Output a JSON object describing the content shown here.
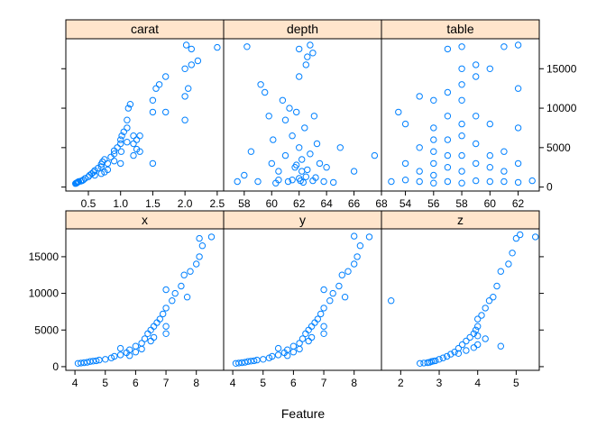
{
  "figure": {
    "xlabel": "Feature"
  },
  "colors": {
    "points": "#0080ff",
    "strip": "#ffe5cc",
    "frame": "#000000"
  },
  "chart_data": {
    "type": "scatter",
    "layout": "lattice 3x2 facets, shared y-axis, free x-axes",
    "y_range": [
      -500,
      18800
    ],
    "y_ticks": [
      0,
      5000,
      10000,
      15000
    ],
    "grid": false,
    "panels": [
      {
        "title": "carat",
        "xlim": [
          0.15,
          2.6
        ],
        "x_ticks": [
          0.5,
          1.0,
          1.5,
          2.0,
          2.5
        ],
        "x_tick_labels": [
          "0.5",
          "1.0",
          "1.5",
          "2.0",
          "2.5"
        ],
        "points": [
          [
            0.3,
            450
          ],
          [
            0.31,
            500
          ],
          [
            0.32,
            520
          ],
          [
            0.33,
            600
          ],
          [
            0.34,
            650
          ],
          [
            0.35,
            700
          ],
          [
            0.38,
            750
          ],
          [
            0.4,
            800
          ],
          [
            0.42,
            900
          ],
          [
            0.45,
            1100
          ],
          [
            0.5,
            1300
          ],
          [
            0.52,
            1500
          ],
          [
            0.55,
            1700
          ],
          [
            0.58,
            1900
          ],
          [
            0.6,
            2100
          ],
          [
            0.65,
            2400
          ],
          [
            0.7,
            2600
          ],
          [
            0.7,
            2900
          ],
          [
            0.72,
            3200
          ],
          [
            0.75,
            3500
          ],
          [
            0.8,
            3000
          ],
          [
            0.85,
            3800
          ],
          [
            0.9,
            4200
          ],
          [
            0.9,
            4600
          ],
          [
            0.95,
            5000
          ],
          [
            1.0,
            5500
          ],
          [
            1.0,
            6000
          ],
          [
            1.02,
            6500
          ],
          [
            1.05,
            7000
          ],
          [
            1.1,
            7500
          ],
          [
            1.1,
            8500
          ],
          [
            1.12,
            10000
          ],
          [
            1.15,
            10500
          ],
          [
            1.2,
            6500
          ],
          [
            1.2,
            5500
          ],
          [
            1.25,
            6000
          ],
          [
            1.3,
            4500
          ],
          [
            1.5,
            9500
          ],
          [
            1.5,
            11000
          ],
          [
            1.55,
            12500
          ],
          [
            1.6,
            13000
          ],
          [
            1.7,
            14000
          ],
          [
            1.7,
            9500
          ],
          [
            2.0,
            8500
          ],
          [
            2.0,
            11500
          ],
          [
            2.0,
            15000
          ],
          [
            2.02,
            18000
          ],
          [
            2.05,
            12500
          ],
          [
            2.1,
            15500
          ],
          [
            2.1,
            17500
          ],
          [
            2.2,
            16000
          ],
          [
            2.5,
            17700
          ],
          [
            0.7,
            1700
          ],
          [
            0.75,
            1900
          ],
          [
            1.0,
            3000
          ],
          [
            1.2,
            4000
          ],
          [
            1.5,
            3000
          ],
          [
            0.9,
            3300
          ],
          [
            1.01,
            4500
          ],
          [
            1.3,
            6500
          ],
          [
            0.8,
            2200
          ],
          [
            0.6,
            1500
          ],
          [
            1.1,
            5700
          ],
          [
            1.25,
            4800
          ]
        ]
      },
      {
        "title": "depth",
        "xlim": [
          56.5,
          68.0
        ],
        "x_ticks": [
          58,
          60,
          62,
          64,
          66,
          68
        ],
        "x_tick_labels": [
          "58",
          "60",
          "62",
          "64",
          "66",
          "68"
        ],
        "points": [
          [
            57.5,
            700
          ],
          [
            58.0,
            1500
          ],
          [
            58.2,
            17800
          ],
          [
            58.5,
            4500
          ],
          [
            59.0,
            700
          ],
          [
            59.2,
            13000
          ],
          [
            59.5,
            12000
          ],
          [
            59.8,
            9000
          ],
          [
            60.0,
            3000
          ],
          [
            60.1,
            6000
          ],
          [
            60.3,
            500
          ],
          [
            60.5,
            2000
          ],
          [
            60.8,
            11000
          ],
          [
            61.0,
            4000
          ],
          [
            61.0,
            8500
          ],
          [
            61.2,
            700
          ],
          [
            61.3,
            10000
          ],
          [
            61.5,
            6500
          ],
          [
            61.7,
            2500
          ],
          [
            61.8,
            9500
          ],
          [
            62.0,
            17500
          ],
          [
            62.0,
            14000
          ],
          [
            62.0,
            5000
          ],
          [
            62.1,
            800
          ],
          [
            62.2,
            3500
          ],
          [
            62.3,
            600
          ],
          [
            62.4,
            7500
          ],
          [
            62.5,
            15500
          ],
          [
            62.6,
            16500
          ],
          [
            62.6,
            2200
          ],
          [
            62.8,
            18000
          ],
          [
            62.8,
            4200
          ],
          [
            63.0,
            17000
          ],
          [
            63.1,
            9000
          ],
          [
            63.2,
            1200
          ],
          [
            63.3,
            5500
          ],
          [
            63.5,
            3000
          ],
          [
            63.8,
            700
          ],
          [
            64.0,
            2500
          ],
          [
            64.5,
            600
          ],
          [
            65.0,
            5000
          ],
          [
            66.0,
            2000
          ],
          [
            67.5,
            4000
          ],
          [
            61.5,
            900
          ],
          [
            62.0,
            1100
          ],
          [
            62.5,
            1300
          ],
          [
            61.8,
            2800
          ],
          [
            62.2,
            2000
          ],
          [
            60.5,
            900
          ],
          [
            63.0,
            800
          ]
        ]
      },
      {
        "title": "table",
        "xlim": [
          52.3,
          63.5
        ],
        "x_ticks": [
          54,
          56,
          58,
          60,
          62
        ],
        "x_tick_labels": [
          "54",
          "56",
          "58",
          "60",
          "62"
        ],
        "points": [
          [
            53,
            700
          ],
          [
            53.5,
            9500
          ],
          [
            54,
            900
          ],
          [
            54,
            3000
          ],
          [
            54,
            8000
          ],
          [
            55,
            700
          ],
          [
            55,
            2000
          ],
          [
            55,
            5000
          ],
          [
            55,
            11500
          ],
          [
            56,
            500
          ],
          [
            56,
            1500
          ],
          [
            56,
            3000
          ],
          [
            56,
            4500
          ],
          [
            56,
            6000
          ],
          [
            56,
            7500
          ],
          [
            56,
            11000
          ],
          [
            57,
            700
          ],
          [
            57,
            2500
          ],
          [
            57,
            4000
          ],
          [
            57,
            6000
          ],
          [
            57,
            9000
          ],
          [
            57,
            12000
          ],
          [
            57,
            17500
          ],
          [
            58,
            500
          ],
          [
            58,
            2000
          ],
          [
            58,
            4000
          ],
          [
            58,
            6500
          ],
          [
            58,
            8000
          ],
          [
            58,
            11000
          ],
          [
            58,
            13000
          ],
          [
            58,
            15000
          ],
          [
            58,
            17800
          ],
          [
            59,
            800
          ],
          [
            59,
            3000
          ],
          [
            59,
            5500
          ],
          [
            59,
            9000
          ],
          [
            59,
            14000
          ],
          [
            59,
            15500
          ],
          [
            60,
            700
          ],
          [
            60,
            2500
          ],
          [
            60,
            4000
          ],
          [
            60,
            8000
          ],
          [
            60,
            15000
          ],
          [
            61,
            700
          ],
          [
            61,
            2000
          ],
          [
            61,
            4500
          ],
          [
            61,
            17800
          ],
          [
            62,
            600
          ],
          [
            62,
            3000
          ],
          [
            62,
            7500
          ],
          [
            62,
            12500
          ],
          [
            62,
            18000
          ],
          [
            63,
            800
          ]
        ]
      },
      {
        "title": "x",
        "xlim": [
          3.7,
          8.9
        ],
        "x_ticks": [
          4,
          5,
          6,
          7,
          8
        ],
        "x_tick_labels": [
          "4",
          "5",
          "6",
          "7",
          "8"
        ],
        "points": [
          [
            4.1,
            450
          ],
          [
            4.2,
            500
          ],
          [
            4.3,
            550
          ],
          [
            4.4,
            600
          ],
          [
            4.5,
            700
          ],
          [
            4.6,
            750
          ],
          [
            4.7,
            800
          ],
          [
            4.8,
            900
          ],
          [
            5.0,
            1000
          ],
          [
            5.2,
            1200
          ],
          [
            5.3,
            1400
          ],
          [
            5.5,
            1600
          ],
          [
            5.7,
            1900
          ],
          [
            5.8,
            2300
          ],
          [
            6.0,
            2800
          ],
          [
            6.2,
            3200
          ],
          [
            6.3,
            3800
          ],
          [
            6.4,
            4500
          ],
          [
            6.5,
            5000
          ],
          [
            6.6,
            5500
          ],
          [
            6.7,
            6000
          ],
          [
            6.8,
            6500
          ],
          [
            6.9,
            7200
          ],
          [
            7.0,
            8000
          ],
          [
            7.0,
            10500
          ],
          [
            7.2,
            9000
          ],
          [
            7.3,
            10000
          ],
          [
            7.5,
            11000
          ],
          [
            7.6,
            12500
          ],
          [
            7.7,
            9500
          ],
          [
            7.8,
            13000
          ],
          [
            8.0,
            14000
          ],
          [
            8.1,
            15000
          ],
          [
            8.1,
            17500
          ],
          [
            8.2,
            16500
          ],
          [
            8.5,
            17700
          ],
          [
            5.5,
            2500
          ],
          [
            6.0,
            2000
          ],
          [
            6.5,
            3500
          ],
          [
            7.0,
            5500
          ],
          [
            6.2,
            2400
          ],
          [
            5.8,
            1500
          ],
          [
            6.6,
            4000
          ],
          [
            7.0,
            4500
          ]
        ]
      },
      {
        "title": "y",
        "xlim": [
          3.7,
          8.9
        ],
        "x_ticks": [
          4,
          5,
          6,
          7,
          8
        ],
        "x_tick_labels": [
          "4",
          "5",
          "6",
          "7",
          "8"
        ],
        "points": [
          [
            4.1,
            450
          ],
          [
            4.2,
            500
          ],
          [
            4.3,
            550
          ],
          [
            4.4,
            600
          ],
          [
            4.5,
            700
          ],
          [
            4.6,
            750
          ],
          [
            4.7,
            800
          ],
          [
            4.8,
            900
          ],
          [
            5.0,
            1000
          ],
          [
            5.2,
            1200
          ],
          [
            5.3,
            1400
          ],
          [
            5.5,
            1600
          ],
          [
            5.7,
            1900
          ],
          [
            5.8,
            2300
          ],
          [
            6.0,
            2800
          ],
          [
            6.2,
            3200
          ],
          [
            6.3,
            3800
          ],
          [
            6.4,
            4500
          ],
          [
            6.5,
            5000
          ],
          [
            6.6,
            5500
          ],
          [
            6.7,
            6000
          ],
          [
            6.8,
            6500
          ],
          [
            6.9,
            7200
          ],
          [
            7.0,
            8000
          ],
          [
            7.0,
            10500
          ],
          [
            7.2,
            9000
          ],
          [
            7.3,
            10000
          ],
          [
            7.5,
            11000
          ],
          [
            7.6,
            12500
          ],
          [
            7.7,
            9500
          ],
          [
            7.8,
            13000
          ],
          [
            8.0,
            14000
          ],
          [
            8.0,
            17800
          ],
          [
            8.1,
            15000
          ],
          [
            8.2,
            16500
          ],
          [
            8.5,
            17700
          ],
          [
            5.5,
            2500
          ],
          [
            6.0,
            2000
          ],
          [
            6.5,
            3500
          ],
          [
            7.0,
            5500
          ],
          [
            6.2,
            2400
          ],
          [
            5.8,
            1500
          ],
          [
            6.6,
            4000
          ],
          [
            7.0,
            4500
          ]
        ]
      },
      {
        "title": "z",
        "xlim": [
          1.5,
          5.6
        ],
        "x_ticks": [
          2,
          3,
          4,
          5
        ],
        "x_tick_labels": [
          "2",
          "3",
          "4",
          "5"
        ],
        "points": [
          [
            1.75,
            9000
          ],
          [
            2.5,
            450
          ],
          [
            2.6,
            500
          ],
          [
            2.7,
            550
          ],
          [
            2.75,
            600
          ],
          [
            2.8,
            700
          ],
          [
            2.85,
            750
          ],
          [
            2.9,
            800
          ],
          [
            3.0,
            1000
          ],
          [
            3.1,
            1200
          ],
          [
            3.2,
            1400
          ],
          [
            3.3,
            1700
          ],
          [
            3.4,
            2000
          ],
          [
            3.5,
            2500
          ],
          [
            3.6,
            3000
          ],
          [
            3.7,
            3500
          ],
          [
            3.8,
            4000
          ],
          [
            3.9,
            4500
          ],
          [
            3.95,
            5000
          ],
          [
            4.0,
            5500
          ],
          [
            4.0,
            6500
          ],
          [
            4.1,
            7000
          ],
          [
            4.2,
            8000
          ],
          [
            4.3,
            9000
          ],
          [
            4.4,
            9500
          ],
          [
            4.5,
            11000
          ],
          [
            4.6,
            13000
          ],
          [
            4.8,
            14000
          ],
          [
            4.9,
            15500
          ],
          [
            5.0,
            17500
          ],
          [
            5.1,
            18000
          ],
          [
            5.5,
            17700
          ],
          [
            3.5,
            1800
          ],
          [
            3.7,
            2200
          ],
          [
            4.0,
            3000
          ],
          [
            4.2,
            3800
          ],
          [
            3.9,
            2600
          ],
          [
            4.6,
            2800
          ],
          [
            4.0,
            4200
          ]
        ]
      }
    ]
  }
}
